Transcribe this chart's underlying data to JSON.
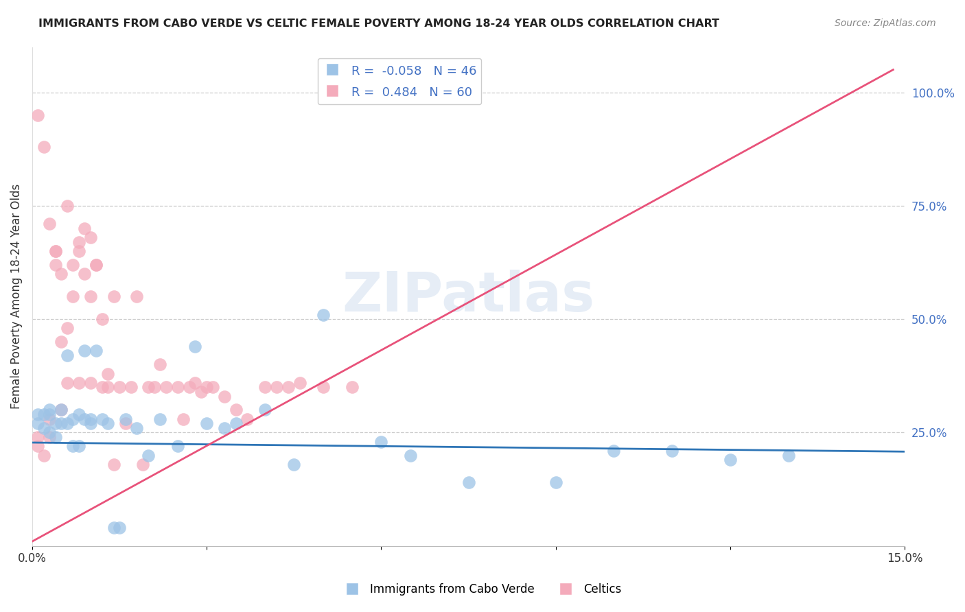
{
  "title": "IMMIGRANTS FROM CABO VERDE VS CELTIC FEMALE POVERTY AMONG 18-24 YEAR OLDS CORRELATION CHART",
  "source": "Source: ZipAtlas.com",
  "ylabel": "Female Poverty Among 18-24 Year Olds",
  "blue_label": "Immigrants from Cabo Verde",
  "pink_label": "Celtics",
  "blue_R": -0.058,
  "blue_N": 46,
  "pink_R": 0.484,
  "pink_N": 60,
  "xlim": [
    0.0,
    0.15
  ],
  "ylim": [
    0.0,
    1.1
  ],
  "yticks_right": [
    0.25,
    0.5,
    0.75,
    1.0
  ],
  "ytick_right_labels": [
    "25.0%",
    "50.0%",
    "75.0%",
    "100.0%"
  ],
  "blue_color": "#9DC3E6",
  "pink_color": "#F4ABBB",
  "blue_line_color": "#2E75B6",
  "pink_line_color": "#E8527A",
  "watermark": "ZIPatlas",
  "blue_x": [
    0.001,
    0.001,
    0.002,
    0.002,
    0.003,
    0.003,
    0.003,
    0.004,
    0.004,
    0.005,
    0.005,
    0.006,
    0.006,
    0.007,
    0.007,
    0.008,
    0.008,
    0.009,
    0.009,
    0.01,
    0.01,
    0.011,
    0.012,
    0.013,
    0.014,
    0.015,
    0.016,
    0.018,
    0.02,
    0.022,
    0.025,
    0.028,
    0.03,
    0.033,
    0.035,
    0.04,
    0.045,
    0.05,
    0.06,
    0.065,
    0.075,
    0.09,
    0.1,
    0.11,
    0.12,
    0.13
  ],
  "blue_y": [
    0.27,
    0.29,
    0.29,
    0.26,
    0.3,
    0.25,
    0.29,
    0.24,
    0.27,
    0.3,
    0.27,
    0.42,
    0.27,
    0.28,
    0.22,
    0.29,
    0.22,
    0.43,
    0.28,
    0.27,
    0.28,
    0.43,
    0.28,
    0.27,
    0.04,
    0.04,
    0.28,
    0.26,
    0.2,
    0.28,
    0.22,
    0.44,
    0.27,
    0.26,
    0.27,
    0.3,
    0.18,
    0.51,
    0.23,
    0.2,
    0.14,
    0.14,
    0.21,
    0.21,
    0.19,
    0.2
  ],
  "pink_x": [
    0.001,
    0.001,
    0.001,
    0.002,
    0.002,
    0.003,
    0.003,
    0.003,
    0.004,
    0.004,
    0.004,
    0.005,
    0.005,
    0.005,
    0.006,
    0.006,
    0.006,
    0.007,
    0.007,
    0.008,
    0.008,
    0.008,
    0.009,
    0.009,
    0.01,
    0.01,
    0.01,
    0.011,
    0.011,
    0.012,
    0.012,
    0.013,
    0.013,
    0.014,
    0.014,
    0.015,
    0.016,
    0.017,
    0.018,
    0.019,
    0.02,
    0.021,
    0.022,
    0.023,
    0.025,
    0.026,
    0.027,
    0.028,
    0.029,
    0.03,
    0.031,
    0.033,
    0.035,
    0.037,
    0.04,
    0.042,
    0.044,
    0.046,
    0.05,
    0.055
  ],
  "pink_y": [
    0.95,
    0.22,
    0.24,
    0.88,
    0.2,
    0.71,
    0.24,
    0.28,
    0.65,
    0.65,
    0.62,
    0.45,
    0.6,
    0.3,
    0.75,
    0.48,
    0.36,
    0.55,
    0.62,
    0.67,
    0.36,
    0.65,
    0.7,
    0.6,
    0.68,
    0.36,
    0.55,
    0.62,
    0.62,
    0.5,
    0.35,
    0.35,
    0.38,
    0.55,
    0.18,
    0.35,
    0.27,
    0.35,
    0.55,
    0.18,
    0.35,
    0.35,
    0.4,
    0.35,
    0.35,
    0.28,
    0.35,
    0.36,
    0.34,
    0.35,
    0.35,
    0.33,
    0.3,
    0.28,
    0.35,
    0.35,
    0.35,
    0.36,
    0.35,
    0.35
  ],
  "pink_line_x0": 0.0,
  "pink_line_y0": 0.01,
  "pink_line_x1": 0.148,
  "pink_line_y1": 1.05,
  "blue_line_x0": 0.0,
  "blue_line_y0": 0.228,
  "blue_line_x1": 0.15,
  "blue_line_y1": 0.208
}
